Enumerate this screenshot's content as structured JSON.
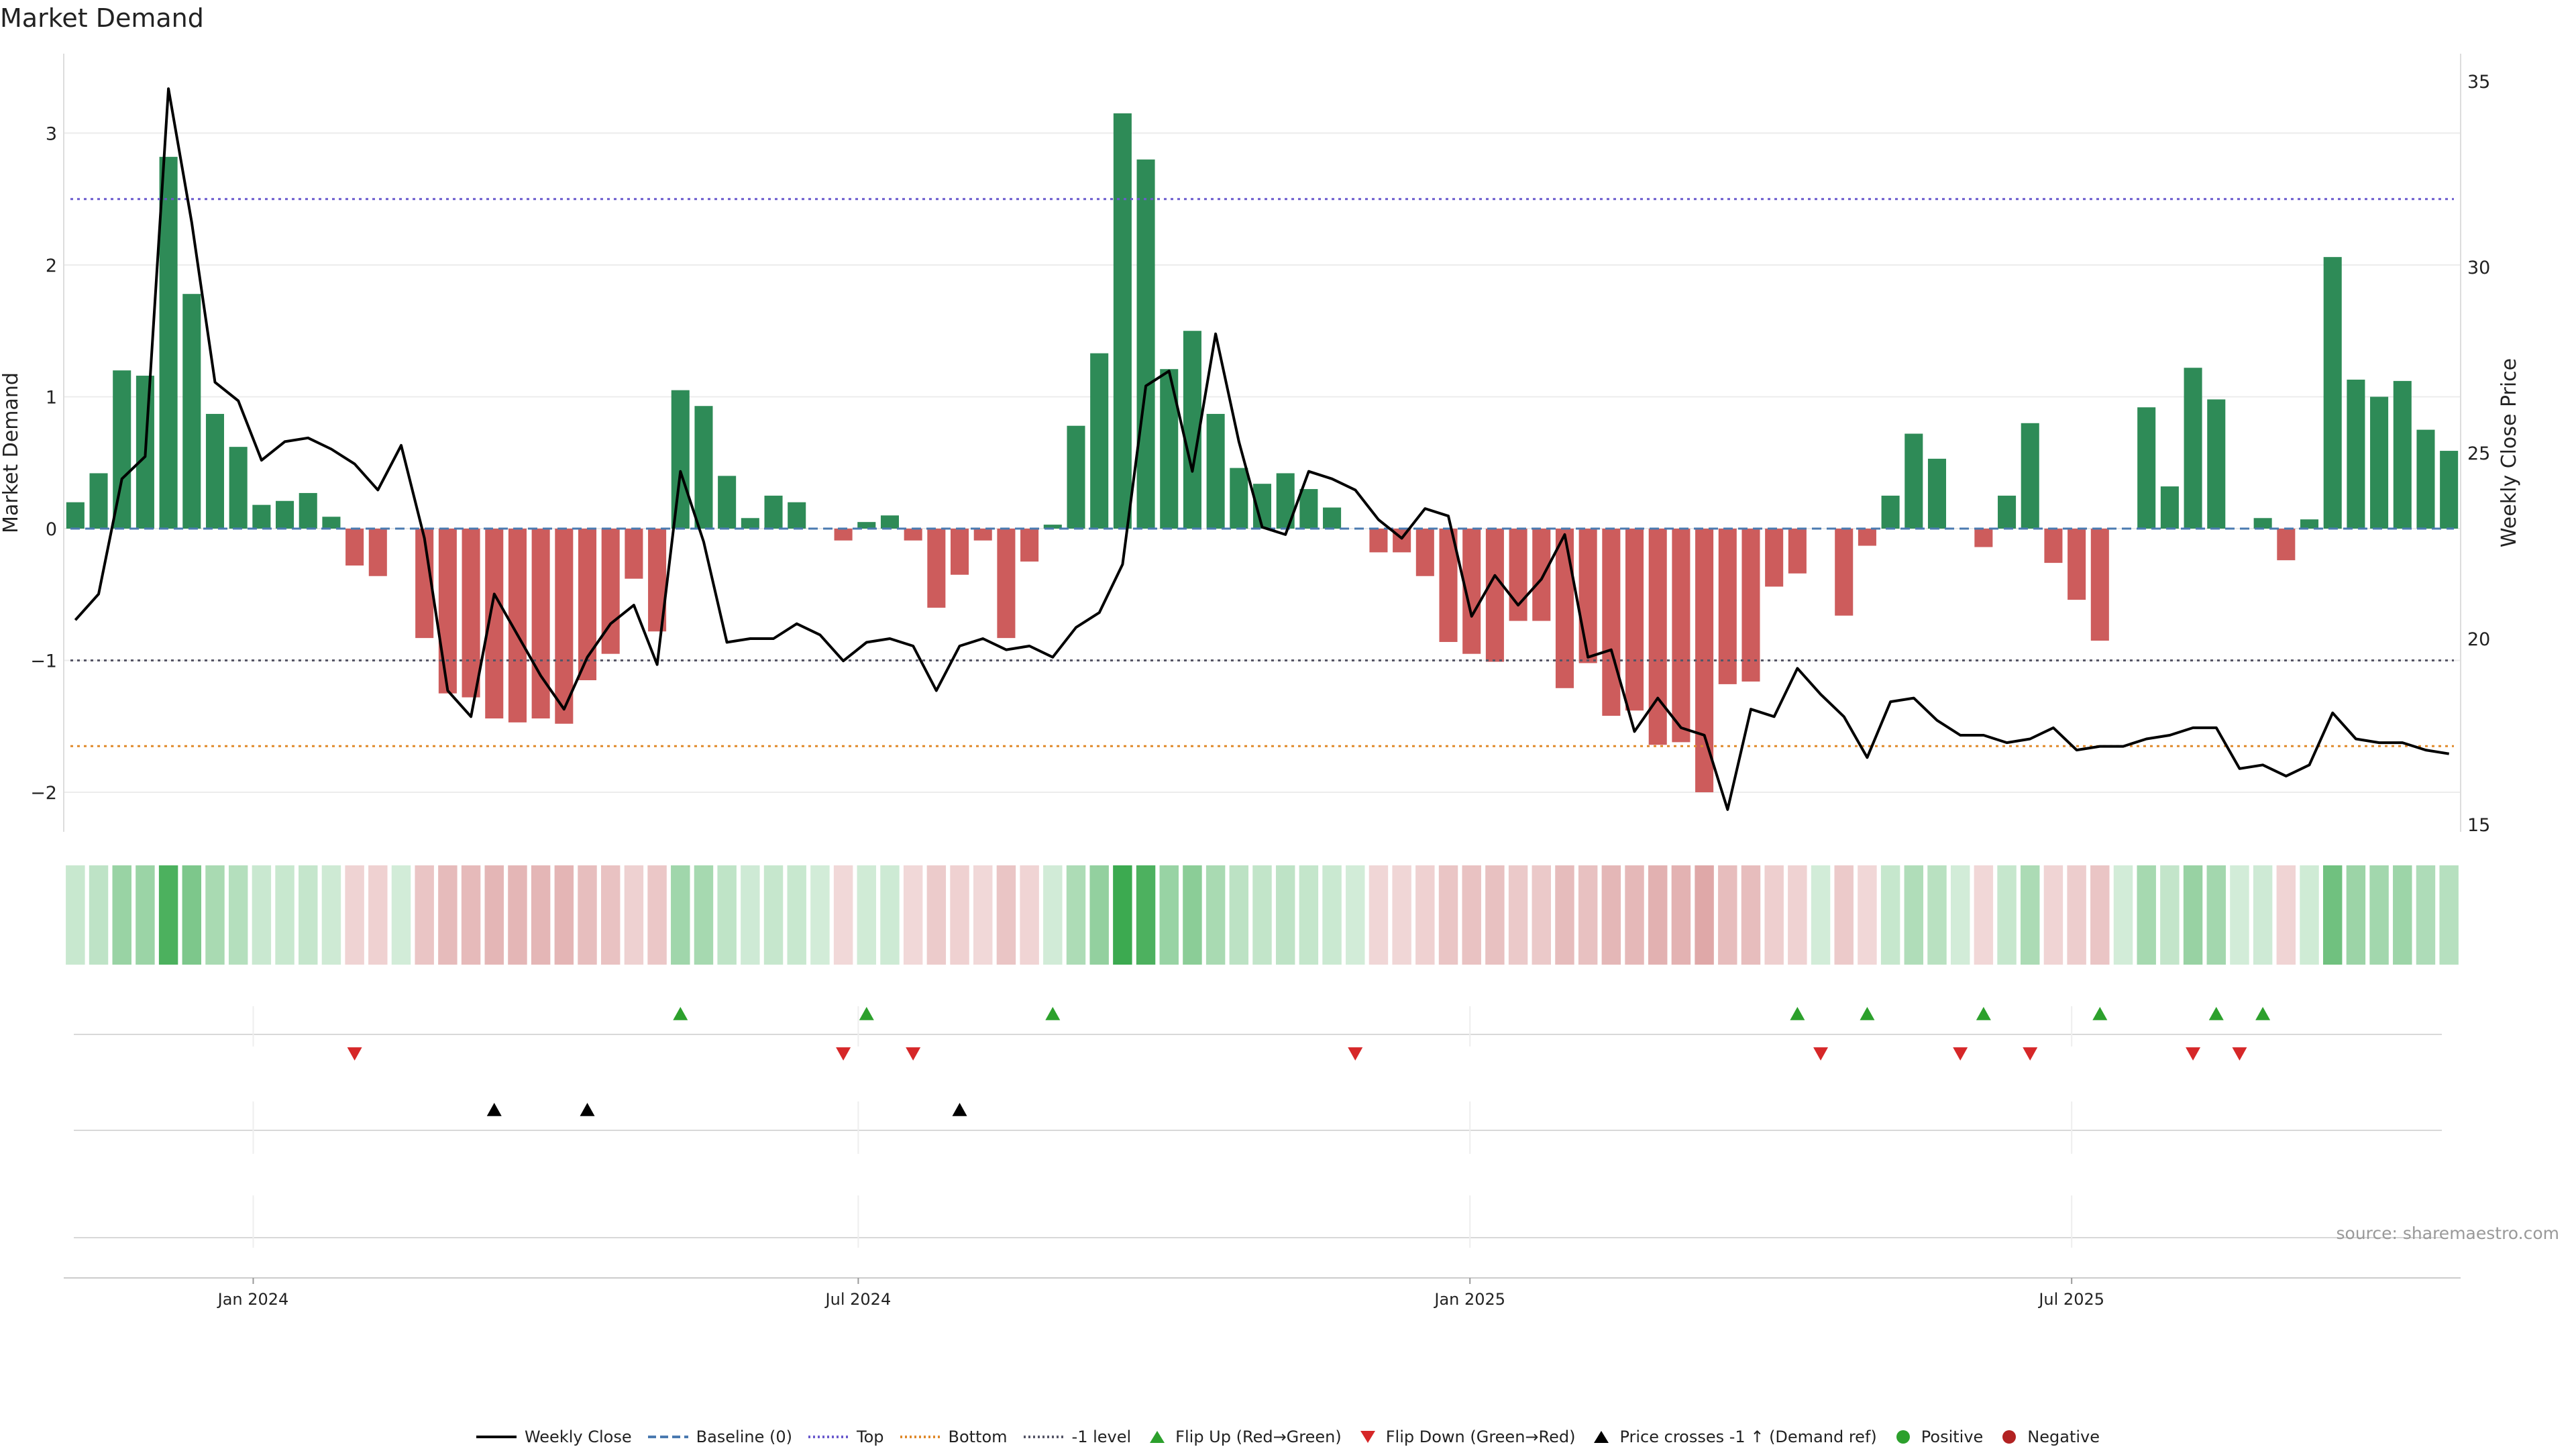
{
  "chart_data": {
    "type": "bar",
    "title": "Market Demand",
    "ylabel": "Market Demand",
    "y2label": "Weekly Close Price",
    "ylim": [
      -2.3,
      3.45
    ],
    "y2lim": [
      14.8,
      35.2
    ],
    "yticks": [
      -2,
      -1,
      0,
      1,
      2,
      3
    ],
    "yticklabels": [
      "−2",
      "−1",
      "0",
      "1",
      "2",
      "3"
    ],
    "y2ticks": [
      15,
      20,
      25,
      30,
      35
    ],
    "y2ticklabels": [
      "15",
      "20",
      "25",
      "30",
      "35"
    ],
    "x_start": "2023-11-05",
    "x_end": "2025-10-26",
    "xticks": [
      "2024-01-01",
      "2024-07-01",
      "2025-01-01",
      "2025-07-01"
    ],
    "xticklabels": [
      "Jan 2024",
      "Jul 2024",
      "Jan 2025",
      "Jul 2025"
    ],
    "reference_lines": [
      {
        "name": "Baseline (0)",
        "value": 0,
        "color": "#4a7ab0",
        "style": "dashed"
      },
      {
        "name": "Top",
        "value": 2.5,
        "color": "#6a5acd",
        "style": "dotted"
      },
      {
        "name": "Bottom",
        "value": -1.65,
        "color": "#e08a2c",
        "style": "dotted"
      },
      {
        "name": "-1 level",
        "value": -1,
        "color": "#555566",
        "style": "dotted"
      }
    ],
    "colors": {
      "positive": "#2e8b57",
      "negative": "#cd5c5c",
      "close": "#000000",
      "flip_up": "#2ca02c",
      "flip_down": "#d62728",
      "cross": "#000000"
    },
    "demand": [
      0.2,
      0.42,
      1.2,
      1.16,
      2.82,
      1.78,
      0.87,
      0.62,
      0.18,
      0.21,
      0.27,
      0.09,
      -0.28,
      -0.36,
      0,
      -0.83,
      -1.25,
      -1.28,
      -1.44,
      -1.47,
      -1.44,
      -1.48,
      -1.15,
      -0.95,
      -0.38,
      -0.78,
      1.05,
      0.93,
      0.4,
      0.08,
      0.25,
      0.2,
      0,
      -0.09,
      0.05,
      0.1,
      -0.09,
      -0.6,
      -0.35,
      -0.09,
      -0.83,
      -0.25,
      0.03,
      0.78,
      1.33,
      3.15,
      2.8,
      1.21,
      1.5,
      0.87,
      0.46,
      0.34,
      0.42,
      0.3,
      0.16,
      0,
      -0.18,
      -0.18,
      -0.36,
      -0.86,
      -0.95,
      -1.01,
      -0.7,
      -0.7,
      -1.21,
      -1.02,
      -1.42,
      -1.38,
      -1.64,
      -1.62,
      -2.0,
      -1.18,
      -1.16,
      -0.44,
      -0.34,
      0,
      -0.66,
      -0.13,
      0.25,
      0.72,
      0.53,
      0,
      -0.14,
      0.25,
      0.8,
      -0.26,
      -0.54,
      -0.85,
      0,
      0.92,
      0.32,
      1.22,
      0.98,
      0,
      0.08,
      -0.24,
      0.07,
      2.06,
      1.13,
      1.0,
      1.12,
      0.75,
      0.59
    ],
    "close": [
      20.5,
      21.2,
      24.3,
      24.9,
      34.8,
      31.2,
      26.9,
      26.4,
      24.8,
      25.3,
      25.4,
      25.1,
      24.7,
      24.0,
      25.2,
      22.7,
      18.6,
      17.9,
      21.2,
      20.1,
      19.0,
      18.1,
      19.5,
      20.4,
      20.9,
      19.3,
      24.5,
      22.6,
      19.9,
      20.0,
      20.0,
      20.4,
      20.1,
      19.4,
      19.9,
      20.0,
      19.8,
      18.6,
      19.8,
      20.0,
      19.7,
      19.8,
      19.5,
      20.3,
      20.7,
      22.0,
      26.8,
      27.2,
      24.5,
      28.2,
      25.3,
      23.0,
      22.8,
      24.5,
      24.3,
      24.0,
      23.2,
      22.7,
      23.5,
      23.3,
      20.6,
      21.7,
      20.9,
      21.6,
      22.8,
      19.5,
      19.7,
      17.5,
      18.4,
      17.6,
      17.4,
      15.4,
      18.1,
      17.9,
      19.2,
      18.5,
      17.9,
      16.8,
      18.3,
      18.4,
      17.8,
      17.4,
      17.4,
      17.2,
      17.3,
      17.6,
      17.0,
      17.1,
      17.1,
      17.3,
      17.4,
      17.6,
      17.6,
      16.5,
      16.6,
      16.3,
      16.6,
      18.0,
      17.3,
      17.2,
      17.2,
      17.0,
      16.9
    ],
    "flip_up_weeks": [
      26,
      34,
      42,
      74,
      77,
      82,
      87,
      92,
      94
    ],
    "flip_down_weeks": [
      12,
      33,
      36,
      55,
      75,
      81,
      84,
      91,
      93
    ],
    "cross_up_weeks": [
      18,
      22,
      38
    ]
  },
  "source_text": "source: sharemaestro.com",
  "legend": [
    {
      "key": "close",
      "label": "Weekly Close",
      "kind": "line",
      "color": "#000000",
      "dash": ""
    },
    {
      "key": "baseline",
      "label": "Baseline (0)",
      "kind": "line",
      "color": "#4a7ab0",
      "dash": "12,6"
    },
    {
      "key": "top",
      "label": "Top",
      "kind": "line",
      "color": "#6a5acd",
      "dash": "3,4"
    },
    {
      "key": "bottom",
      "label": "Bottom",
      "kind": "line",
      "color": "#e08a2c",
      "dash": "3,4"
    },
    {
      "key": "minus1",
      "label": "-1 level",
      "kind": "line",
      "color": "#555566",
      "dash": "3,4"
    },
    {
      "key": "flipup",
      "label": "Flip Up (Red→Green)",
      "kind": "tri-up",
      "color": "#2ca02c"
    },
    {
      "key": "flipdown",
      "label": "Flip Down (Green→Red)",
      "kind": "tri-down",
      "color": "#d62728"
    },
    {
      "key": "cross",
      "label": "Price crosses -1 ↑ (Demand ref)",
      "kind": "tri-up",
      "color": "#000000"
    },
    {
      "key": "positive",
      "label": "Positive",
      "kind": "dot",
      "color": "#2ca02c"
    },
    {
      "key": "negative",
      "label": "Negative",
      "kind": "dot",
      "color": "#b22222"
    }
  ]
}
